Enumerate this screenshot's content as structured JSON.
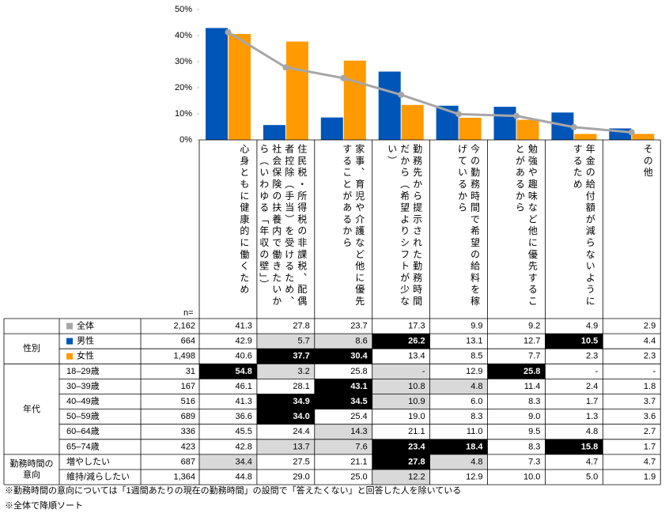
{
  "chart_data": {
    "type": "bar",
    "categories": [
      "心身ともに健康的に働くため",
      "住民税・所得税の非課税、配偶者控除（手当）を受けるため、社会保険の扶養内で働きたいから（いわゆる「年収の壁」）",
      "家事、育児や介護など他に優先することがあるから",
      "勤務先から提示された勤務時間だから（希望よりシフトが少ない）",
      "今の勤務時間で希望の給料を稼げているから",
      "勉強や趣味など他に優先することがあるから",
      "年金の給付額が減らないようにするため",
      "その他"
    ],
    "series": [
      {
        "name": "全体",
        "type": "line",
        "color": "#a6a6a6",
        "values": [
          41.3,
          27.8,
          23.7,
          17.3,
          9.9,
          9.2,
          4.9,
          2.9
        ],
        "n": "2,162",
        "shade": [
          null,
          null,
          null,
          null,
          null,
          null,
          null,
          null
        ]
      },
      {
        "name": "男性",
        "type": "bar",
        "color": "#0055b8",
        "values": [
          42.9,
          5.7,
          8.6,
          26.2,
          13.1,
          12.7,
          10.5,
          4.4
        ],
        "n": "664",
        "shade": [
          null,
          "light",
          "light",
          "dark",
          null,
          null,
          "dark",
          null
        ]
      },
      {
        "name": "女性",
        "type": "bar",
        "color": "#ff9a00",
        "values": [
          40.6,
          37.7,
          30.4,
          13.4,
          8.5,
          7.7,
          2.3,
          2.3
        ],
        "n": "1,498",
        "shade": [
          null,
          "dark",
          "dark",
          null,
          null,
          null,
          null,
          null
        ]
      }
    ],
    "ylim": [
      0,
      50
    ],
    "yticks": [
      {
        "value": 0,
        "label": "0%"
      },
      {
        "value": 10,
        "label": "10%"
      },
      {
        "value": 20,
        "label": "20%"
      },
      {
        "value": 30,
        "label": "30%"
      },
      {
        "value": 40,
        "label": "40%"
      },
      {
        "value": 50,
        "label": "50%"
      }
    ]
  },
  "table": {
    "n_label": "n=",
    "sex_label": "性別",
    "groups": [
      {
        "label": "年代",
        "rows": [
          {
            "label": "18–29歳",
            "n": "31",
            "values": [
              "54.8",
              "3.2",
              "25.8",
              "-",
              "12.9",
              "25.8",
              "-",
              "-"
            ],
            "shade": [
              "dark",
              "light",
              null,
              "light",
              null,
              "dark",
              null,
              null
            ]
          },
          {
            "label": "30–39歳",
            "n": "167",
            "values": [
              "46.1",
              "28.1",
              "43.1",
              "10.8",
              "4.8",
              "11.4",
              "2.4",
              "1.8"
            ],
            "shade": [
              null,
              null,
              "dark",
              "light",
              "light",
              null,
              null,
              null
            ]
          },
          {
            "label": "40–49歳",
            "n": "516",
            "values": [
              "41.3",
              "34.9",
              "34.5",
              "10.9",
              "6.0",
              "8.3",
              "1.7",
              "3.7"
            ],
            "shade": [
              null,
              "dark",
              "dark",
              "light",
              null,
              null,
              null,
              null
            ]
          },
          {
            "label": "50–59歳",
            "n": "689",
            "values": [
              "36.6",
              "34.0",
              "25.4",
              "19.0",
              "8.3",
              "9.0",
              "1.3",
              "3.6"
            ],
            "shade": [
              null,
              "dark",
              null,
              null,
              null,
              null,
              null,
              null
            ]
          },
          {
            "label": "60–64歳",
            "n": "336",
            "values": [
              "45.5",
              "24.4",
              "14.3",
              "21.1",
              "11.0",
              "9.5",
              "4.8",
              "2.7"
            ],
            "shade": [
              null,
              null,
              "light",
              null,
              null,
              null,
              null,
              null
            ]
          },
          {
            "label": "65–74歳",
            "n": "423",
            "values": [
              "42.8",
              "13.7",
              "7.6",
              "23.4",
              "18.4",
              "8.3",
              "15.8",
              "1.7"
            ],
            "shade": [
              null,
              "light",
              "light",
              "dark",
              "dark",
              null,
              "dark",
              null
            ]
          }
        ]
      },
      {
        "label": "勤務時間の\n意向",
        "rows": [
          {
            "label": "増やしたい",
            "n": "687",
            "values": [
              "34.4",
              "27.5",
              "21.1",
              "27.8",
              "4.8",
              "7.3",
              "4.7",
              "4.7"
            ],
            "shade": [
              "light",
              null,
              null,
              "dark",
              "light",
              null,
              null,
              null
            ]
          },
          {
            "label": "維持/減らしたい",
            "n": "1,364",
            "values": [
              "44.8",
              "29.0",
              "25.0",
              "12.2",
              "12.9",
              "10.0",
              "5.0",
              "1.9"
            ],
            "shade": [
              null,
              null,
              null,
              "light",
              null,
              null,
              null,
              null
            ]
          }
        ]
      }
    ]
  },
  "notes": [
    "※勤務時間の意向については「1週間あたりの現在の勤務時間」の設問で「答えたくない」と回答した人を除いている",
    "※全体で降順ソート"
  ]
}
